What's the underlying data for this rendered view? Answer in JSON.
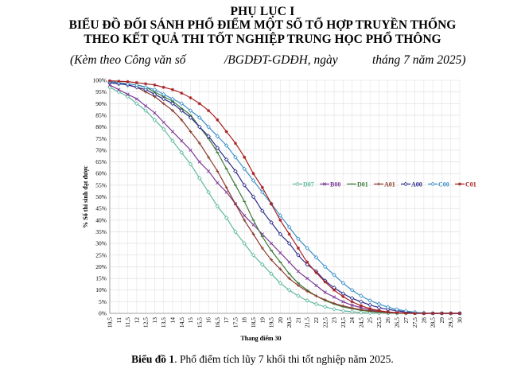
{
  "header": {
    "line1": "PHỤ LỤC I",
    "line2": "BIỂU ĐỒ ĐỐI SÁNH PHỔ ĐIỂM MỘT SỐ TỔ HỢP TRUYỀN THỐNG",
    "line3": "THEO KẾT QUẢ THI TỐT NGHIỆP TRUNG HỌC PHỔ THÔNG",
    "sub_a": "(Kèm theo Công văn số",
    "sub_b": "/BGDĐT-GDĐH, ngày",
    "sub_c": "tháng 7 năm 2025)"
  },
  "caption": {
    "bold": "Biểu đồ 1",
    "text": ". Phổ điểm tích lũy 7 khối thi tốt nghiệp năm 2025."
  },
  "chart_data": {
    "type": "line",
    "xlabel": "Thang điểm 30",
    "ylabel": "% Số thí sinh đạt được",
    "x": [
      "10,5",
      "11",
      "11,5",
      "12",
      "12,5",
      "13",
      "13,5",
      "14",
      "14,5",
      "15",
      "15,5",
      "16",
      "16,5",
      "17",
      "17,5",
      "18",
      "18,5",
      "19",
      "19,5",
      "20",
      "20,5",
      "21",
      "21,5",
      "22",
      "22,5",
      "23",
      "23,5",
      "24",
      "24,5",
      "25",
      "25,5",
      "26",
      "26,5",
      "27",
      "27,5",
      "28",
      "28,5",
      "29",
      "29,5",
      "30"
    ],
    "ylim": [
      0,
      100
    ],
    "yticks": [
      "0%",
      "5%",
      "10%",
      "15%",
      "20%",
      "25%",
      "30%",
      "35%",
      "40%",
      "45%",
      "50%",
      "55%",
      "60%",
      "65%",
      "70%",
      "75%",
      "80%",
      "85%",
      "90%",
      "95%",
      "100%"
    ],
    "grid": true,
    "legend_position": "inside-right",
    "series": [
      {
        "name": "D07",
        "color": "#5fb8a0",
        "marker": "diamond-open",
        "values": [
          97,
          95,
          93,
          90,
          87,
          83,
          79,
          74,
          69,
          64,
          58,
          52,
          46,
          41,
          35,
          30,
          25,
          21,
          17,
          13,
          10,
          7.5,
          5.5,
          4,
          2.8,
          1.8,
          1.1,
          0.7,
          0.4,
          0.2,
          0.1,
          0,
          0,
          0,
          0,
          0,
          0,
          0,
          0,
          0
        ]
      },
      {
        "name": "B00",
        "color": "#7b3a96",
        "marker": "cross",
        "values": [
          98,
          96,
          94,
          92,
          89,
          86,
          82,
          78,
          74,
          70,
          65,
          61,
          56,
          52,
          47,
          42,
          38,
          34,
          30,
          26,
          22,
          18,
          15,
          12,
          9,
          7,
          5,
          3.5,
          2.5,
          1.5,
          1,
          0.5,
          0.3,
          0.2,
          0.1,
          0,
          0,
          0,
          0,
          0
        ]
      },
      {
        "name": "D01",
        "color": "#3d7a3a",
        "marker": "dash",
        "values": [
          99.5,
          99,
          98.5,
          98,
          97,
          95,
          93,
          91,
          88,
          85,
          80,
          75,
          69,
          62,
          55,
          48,
          40,
          33,
          27,
          22,
          17,
          13,
          10,
          7.5,
          5.5,
          4,
          2.8,
          2,
          1.3,
          0.8,
          0.5,
          0.3,
          0.1,
          0,
          0,
          0,
          0,
          0,
          0,
          0
        ]
      },
      {
        "name": "A01",
        "color": "#8a3a2a",
        "marker": "plus",
        "values": [
          99,
          98.5,
          98,
          97,
          95,
          93,
          90,
          87,
          83,
          78,
          73,
          67,
          61,
          54,
          47,
          40,
          34,
          28,
          23,
          19,
          15,
          12,
          9.5,
          7.5,
          5.8,
          4.3,
          3.2,
          2.3,
          1.6,
          1.1,
          0.7,
          0.4,
          0.2,
          0.1,
          0,
          0,
          0,
          0,
          0,
          0
        ]
      },
      {
        "name": "A00",
        "color": "#2a2a8a",
        "marker": "diamond-open",
        "values": [
          99,
          98.5,
          98,
          97,
          96,
          94,
          92,
          90,
          87,
          84,
          80,
          76,
          71,
          66,
          61,
          55,
          50,
          44,
          39,
          34,
          30,
          25,
          21,
          18,
          14,
          11,
          8.5,
          6.5,
          5,
          3.6,
          2.5,
          1.7,
          1.1,
          0.6,
          0.3,
          0.1,
          0,
          0,
          0,
          0
        ]
      },
      {
        "name": "C00",
        "color": "#3a8fc8",
        "marker": "diamond-open",
        "values": [
          99.5,
          99,
          98.5,
          98,
          97,
          96,
          94,
          92,
          90,
          87,
          84,
          80,
          76,
          72,
          67,
          62,
          57,
          52,
          47,
          42,
          37,
          32,
          28,
          24,
          20,
          16.5,
          13,
          10,
          7.5,
          5.5,
          4,
          2.7,
          1.7,
          1,
          0.5,
          0.2,
          0,
          0,
          0,
          0
        ]
      },
      {
        "name": "C01",
        "color": "#a82020",
        "marker": "star",
        "values": [
          99.8,
          99.6,
          99.4,
          99,
          98.5,
          98,
          97,
          96,
          94.5,
          92.5,
          90,
          87,
          83,
          78,
          73,
          67,
          60,
          54,
          47,
          40,
          34,
          28,
          22,
          17.5,
          13.5,
          10,
          7.2,
          5,
          3.3,
          2,
          1.2,
          0.6,
          0.3,
          0.1,
          0,
          0,
          0,
          0,
          0,
          0
        ]
      }
    ]
  }
}
